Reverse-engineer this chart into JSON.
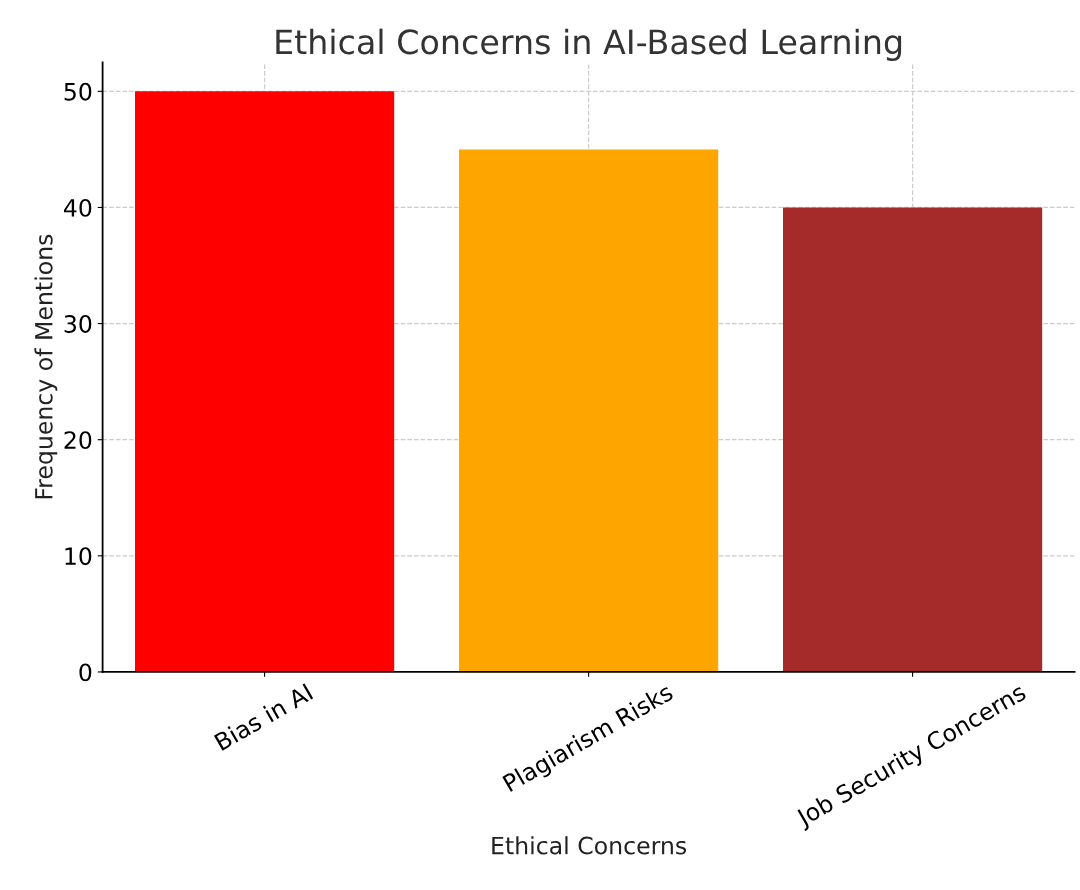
{
  "chart_data": {
    "type": "bar",
    "title": "Ethical Concerns in AI-Based Learning",
    "xlabel": "Ethical Concerns",
    "ylabel": "Frequency of Mentions",
    "categories": [
      "Bias in AI",
      "Plagiarism Risks",
      "Job Security Concerns"
    ],
    "values": [
      50,
      45,
      40
    ],
    "colors": [
      "#ff0000",
      "#ffa500",
      "#a52a2a"
    ],
    "ylim": [
      0,
      52.5
    ],
    "yticks": [
      0,
      10,
      20,
      30,
      40,
      50
    ],
    "grid": true
  }
}
